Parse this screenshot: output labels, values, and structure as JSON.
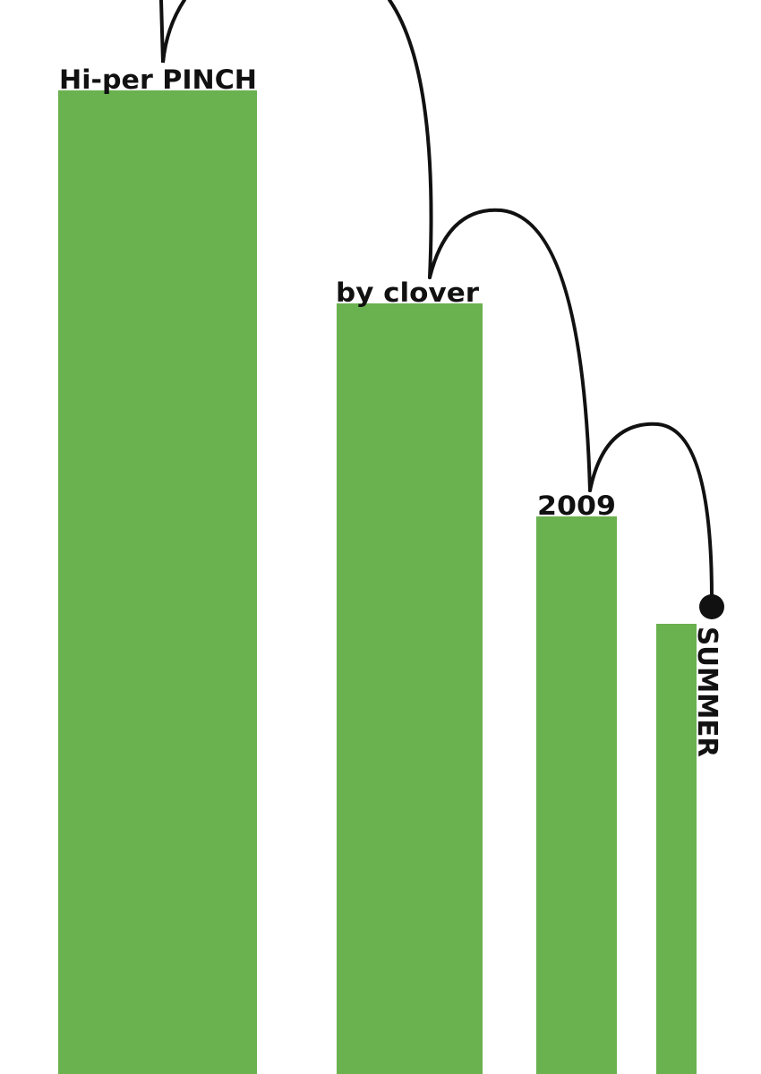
{
  "poster": {
    "title": "Hi-per PINCH",
    "author": "by clover",
    "year": "2009",
    "season": "SUMMER"
  },
  "colors": {
    "bar_green": "#6ab14f",
    "line": "#111111",
    "background": "#ffffff"
  }
}
